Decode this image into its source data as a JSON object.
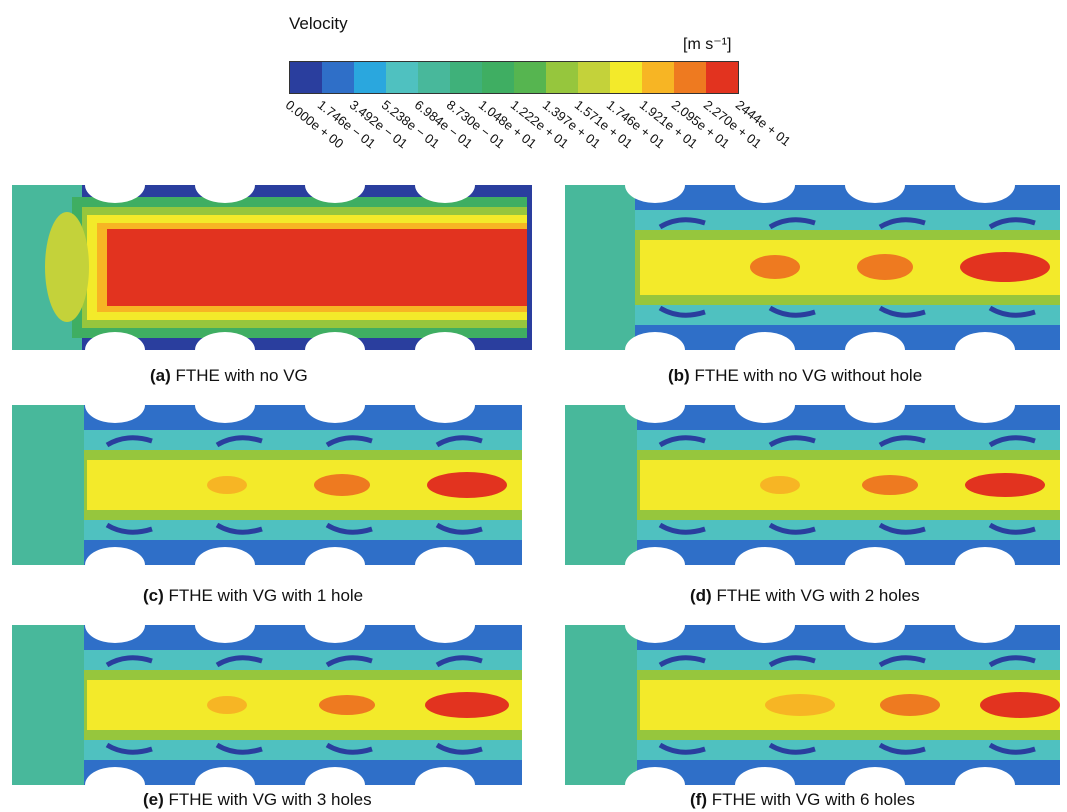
{
  "legend": {
    "title": "Velocity",
    "unit": "[m s⁻¹]",
    "colors": [
      "#2a3e9e",
      "#2f6fc8",
      "#2aa7de",
      "#4fc1c0",
      "#48b89b",
      "#3fb17a",
      "#3fae62",
      "#56b550",
      "#96c63d",
      "#c4d23a",
      "#f3ea2a",
      "#f7b524",
      "#ee7a20",
      "#e2331f"
    ],
    "ticks": [
      "0.000e + 00",
      "1.746e − 01",
      "3.492e − 01",
      "5.238e − 01",
      "6.984e − 01",
      "8.730e − 01",
      "1.048e + 01",
      "1.222e + 01",
      "1.397e + 01",
      "1.571e + 01",
      "1.746e + 01",
      "1.921e + 01",
      "2.095e + 01",
      "2.270e + 01",
      "2444e + 01"
    ]
  },
  "panels": [
    {
      "tag": "(a)",
      "text": "FTHE with no VG",
      "vg": false,
      "holes": 0
    },
    {
      "tag": "(b)",
      "text": "FTHE with no VG without hole",
      "vg": false,
      "holes": 0
    },
    {
      "tag": "(c)",
      "text": "FTHE with VG with 1 hole",
      "vg": true,
      "holes": 1
    },
    {
      "tag": "(d)",
      "text": "FTHE with VG with 2 holes",
      "vg": true,
      "holes": 2
    },
    {
      "tag": "(e)",
      "text": "FTHE with VG with 3 holes",
      "vg": true,
      "holes": 3
    },
    {
      "tag": "(f)",
      "text": "FTHE with VG with 6 holes",
      "vg": true,
      "holes": 6
    }
  ]
}
